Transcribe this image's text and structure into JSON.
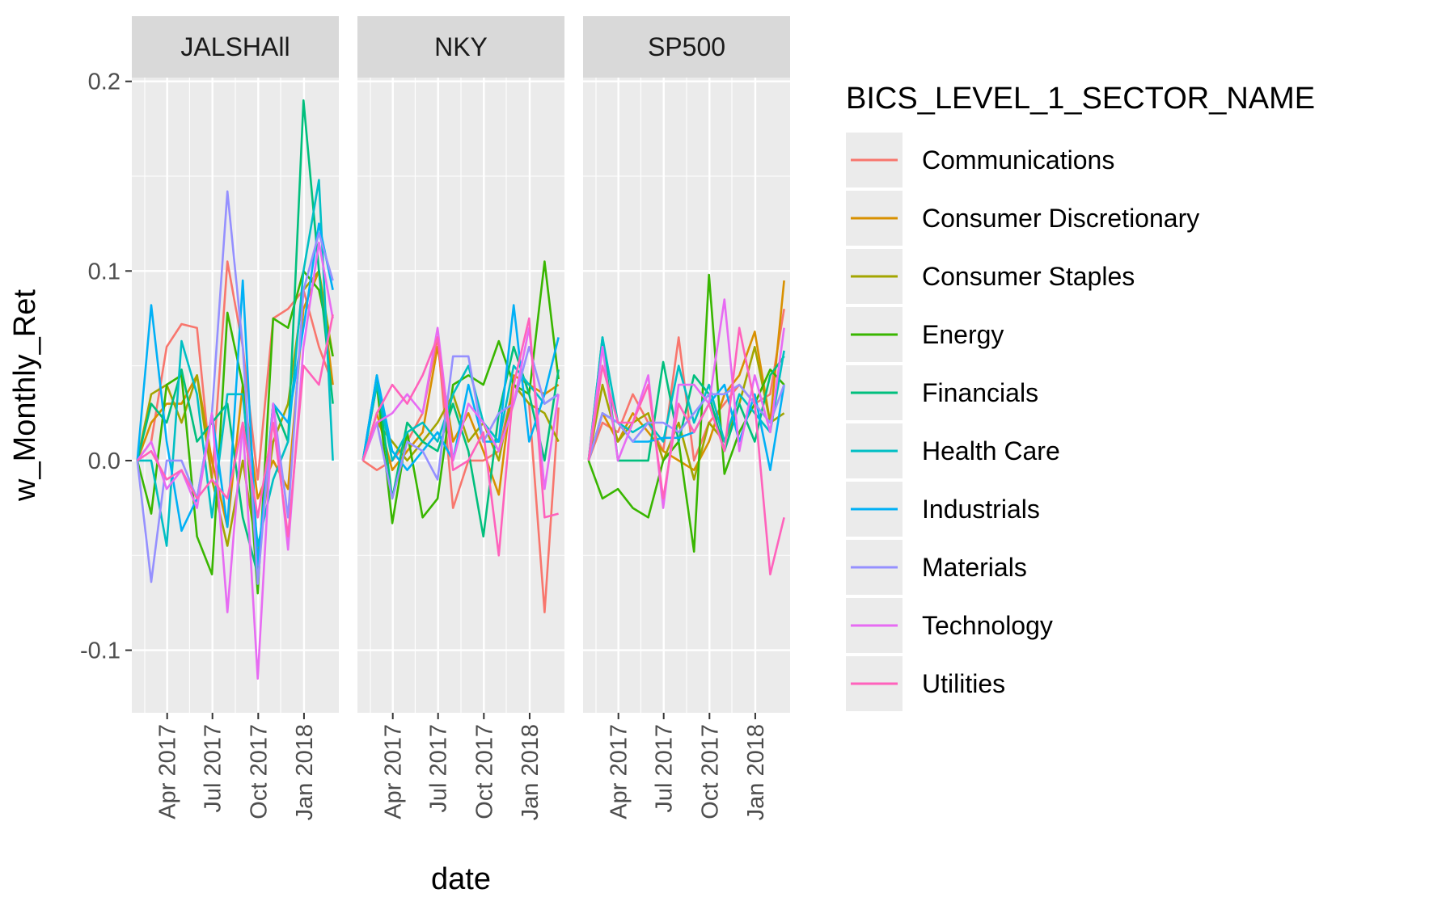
{
  "chart_data": {
    "type": "line",
    "facet_labels": [
      "JALSHAll",
      "NKY",
      "SP500"
    ],
    "xlabel": "date",
    "ylabel": "w_Monthly_Ret",
    "x_tick_labels": [
      "Apr 2017",
      "Jul 2017",
      "Oct 2017",
      "Jan 2018"
    ],
    "x_ticks": [
      "2017-04-01",
      "2017-07-01",
      "2017-10-01",
      "2018-01-01"
    ],
    "x_dates": [
      "2017-01-31",
      "2017-02-28",
      "2017-03-31",
      "2017-04-30",
      "2017-05-31",
      "2017-06-30",
      "2017-07-31",
      "2017-08-31",
      "2017-09-30",
      "2017-10-31",
      "2017-11-30",
      "2017-12-31",
      "2018-01-31",
      "2018-02-28"
    ],
    "xlim": [
      "2017-01-20",
      "2018-03-12"
    ],
    "y_tick_labels": [
      "-0.1",
      "0.0",
      "0.1",
      "0.2"
    ],
    "y_ticks": [
      -0.1,
      0.0,
      0.1,
      0.2
    ],
    "ylim": [
      -0.133,
      0.202
    ],
    "grid": true,
    "legend": {
      "title": "BICS_LEVEL_1_SECTOR_NAME",
      "position": "right",
      "entries": [
        "Communications",
        "Consumer Discretionary",
        "Consumer Staples",
        "Energy",
        "Financials",
        "Health Care",
        "Industrials",
        "Materials",
        "Technology",
        "Utilities"
      ]
    },
    "colors": {
      "Communications": "#F8766D",
      "Consumer Discretionary": "#D89000",
      "Consumer Staples": "#A3A500",
      "Energy": "#39B600",
      "Financials": "#00BF7D",
      "Health Care": "#00BFC4",
      "Industrials": "#00B0F6",
      "Materials": "#9590FF",
      "Technology": "#E76BF3",
      "Utilities": "#FF62BC"
    },
    "panels": [
      {
        "facet": "JALSHAll",
        "series": [
          {
            "name": "Communications",
            "values": [
              0,
              0.01,
              0.06,
              0.072,
              0.07,
              -0.01,
              0.105,
              0.06,
              -0.01,
              0.075,
              0.08,
              0.09,
              0.06,
              0.04
            ]
          },
          {
            "name": "Consumer Discretionary",
            "values": [
              0,
              0.02,
              0.03,
              0.03,
              0.045,
              0.0,
              -0.035,
              0.04,
              -0.02,
              0.0,
              -0.015,
              0.08,
              0.1,
              0.04
            ]
          },
          {
            "name": "Consumer Staples",
            "values": [
              0,
              0.035,
              0.04,
              0.02,
              0.045,
              -0.01,
              -0.045,
              0.0,
              -0.05,
              0.01,
              0.03,
              0.09,
              0.1,
              0.055
            ]
          },
          {
            "name": "Energy",
            "values": [
              0,
              -0.028,
              0.04,
              0.045,
              -0.04,
              -0.06,
              0.078,
              0.04,
              -0.07,
              0.075,
              0.07,
              0.1,
              0.09,
              0.055
            ]
          },
          {
            "name": "Financials",
            "values": [
              0,
              0.03,
              0.02,
              0.048,
              0.01,
              0.02,
              0.03,
              -0.03,
              -0.06,
              0.03,
              0.01,
              0.19,
              0.1,
              0.03
            ]
          },
          {
            "name": "Health Care",
            "values": [
              0,
              0.0,
              -0.045,
              0.063,
              0.035,
              -0.03,
              0.035,
              0.035,
              -0.045,
              -0.01,
              0.01,
              0.1,
              0.148,
              0.0
            ]
          },
          {
            "name": "Industrials",
            "values": [
              0,
              0.082,
              0.01,
              -0.037,
              -0.02,
              0.025,
              -0.035,
              0.095,
              -0.055,
              0.03,
              0.02,
              0.07,
              0.125,
              0.09
            ]
          },
          {
            "name": "Materials",
            "values": [
              0,
              -0.064,
              0.0,
              0.0,
              -0.02,
              0.025,
              0.142,
              0.06,
              -0.065,
              0.03,
              -0.03,
              0.09,
              0.12,
              0.095
            ]
          },
          {
            "name": "Technology",
            "values": [
              0,
              0.01,
              -0.015,
              -0.005,
              -0.025,
              0.025,
              -0.08,
              0.02,
              -0.115,
              0.03,
              -0.047,
              0.06,
              0.115,
              0.075
            ]
          },
          {
            "name": "Utilities",
            "values": [
              0,
              0.005,
              -0.01,
              -0.005,
              -0.02,
              -0.01,
              -0.02,
              0.02,
              -0.03,
              0.02,
              -0.04,
              0.05,
              0.04,
              0.077
            ]
          }
        ]
      },
      {
        "facet": "NKY",
        "series": [
          {
            "name": "Communications",
            "values": [
              0,
              -0.005,
              0.0,
              0.01,
              0.025,
              0.065,
              -0.025,
              0.0,
              0.0,
              0.005,
              0.04,
              0.03,
              -0.08,
              0.028
            ]
          },
          {
            "name": "Consumer Discretionary",
            "values": [
              0,
              0.025,
              -0.005,
              0.005,
              0.015,
              0.06,
              0.01,
              0.025,
              0.005,
              -0.018,
              0.045,
              0.04,
              0.035,
              0.04
            ]
          },
          {
            "name": "Consumer Staples",
            "values": [
              0,
              0.02,
              0.01,
              0.0,
              0.01,
              0.02,
              0.035,
              0.01,
              0.02,
              0.0,
              0.04,
              0.03,
              0.025,
              0.01
            ]
          },
          {
            "name": "Energy",
            "values": [
              0,
              0.04,
              -0.033,
              0.015,
              -0.03,
              -0.02,
              0.04,
              0.045,
              0.04,
              0.063,
              0.04,
              0.035,
              0.105,
              0.043
            ]
          },
          {
            "name": "Financials",
            "values": [
              0,
              0.045,
              -0.02,
              0.02,
              0.01,
              0.005,
              0.03,
              0.005,
              -0.04,
              0.025,
              0.06,
              0.035,
              0.0,
              0.048
            ]
          },
          {
            "name": "Health Care",
            "values": [
              0,
              0.04,
              0.0,
              0.015,
              0.02,
              0.01,
              0.035,
              0.05,
              0.02,
              0.01,
              0.05,
              0.04,
              0.03,
              0.035
            ]
          },
          {
            "name": "Industrials",
            "values": [
              0,
              0.045,
              0.005,
              -0.005,
              0.005,
              0.015,
              0.0,
              0.04,
              0.01,
              0.01,
              0.082,
              0.01,
              0.035,
              0.065
            ]
          },
          {
            "name": "Materials",
            "values": [
              0,
              0.02,
              -0.02,
              0.01,
              0.005,
              -0.01,
              0.055,
              0.055,
              0.01,
              0.025,
              0.03,
              0.06,
              0.03,
              0.035
            ]
          },
          {
            "name": "Technology",
            "values": [
              0,
              0.02,
              0.025,
              0.035,
              0.025,
              0.07,
              0.0,
              0.03,
              0.02,
              0.005,
              0.03,
              0.07,
              -0.015,
              0.035
            ]
          },
          {
            "name": "Utilities",
            "values": [
              0,
              0.025,
              0.04,
              0.03,
              0.045,
              0.065,
              -0.005,
              0.0,
              0.015,
              -0.05,
              0.04,
              0.075,
              -0.03,
              -0.028
            ]
          }
        ]
      },
      {
        "facet": "SP500",
        "series": [
          {
            "name": "Communications",
            "values": [
              0,
              0.02,
              0.015,
              0.035,
              0.02,
              0.005,
              0.065,
              0.0,
              0.02,
              0.03,
              0.04,
              0.03,
              0.035,
              0.08
            ]
          },
          {
            "name": "Consumer Discretionary",
            "values": [
              0,
              0.025,
              0.01,
              0.025,
              0.015,
              0.005,
              0.0,
              -0.005,
              0.01,
              0.035,
              0.045,
              0.068,
              0.02,
              0.095
            ]
          },
          {
            "name": "Consumer Staples",
            "values": [
              0,
              0.04,
              0.01,
              0.02,
              0.025,
              0.0,
              0.02,
              -0.01,
              0.02,
              0.01,
              0.03,
              0.06,
              0.02,
              0.025
            ]
          },
          {
            "name": "Energy",
            "values": [
              0,
              -0.02,
              -0.015,
              -0.025,
              -0.03,
              0.0,
              0.01,
              -0.048,
              0.098,
              -0.007,
              0.015,
              0.03,
              0.048,
              0.04
            ]
          },
          {
            "name": "Financials",
            "values": [
              0,
              0.065,
              0.0,
              0.0,
              0.0,
              0.052,
              0.01,
              0.045,
              0.035,
              0.005,
              0.03,
              0.01,
              0.045,
              0.055
            ]
          },
          {
            "name": "Health Care",
            "values": [
              0,
              0.065,
              0.02,
              0.015,
              0.02,
              0.01,
              0.05,
              0.02,
              0.04,
              0.01,
              0.035,
              0.025,
              0.015,
              0.058
            ]
          },
          {
            "name": "Industrials",
            "values": [
              0,
              0.025,
              0.02,
              0.01,
              0.01,
              0.012,
              0.012,
              0.015,
              0.03,
              0.04,
              0.01,
              0.035,
              -0.005,
              0.04
            ]
          },
          {
            "name": "Materials",
            "values": [
              0,
              0.025,
              0.02,
              0.01,
              0.02,
              0.02,
              0.015,
              0.025,
              0.035,
              0.035,
              0.04,
              0.03,
              0.02,
              0.04
            ]
          },
          {
            "name": "Technology",
            "values": [
              0,
              0.06,
              0.0,
              0.02,
              0.045,
              -0.025,
              0.04,
              0.04,
              0.03,
              0.085,
              0.005,
              0.045,
              0.015,
              0.07
            ]
          },
          {
            "name": "Utilities",
            "values": [
              0,
              0.05,
              0.02,
              0.02,
              0.04,
              -0.02,
              0.03,
              0.015,
              0.03,
              0.005,
              0.07,
              0.03,
              -0.06,
              -0.03
            ]
          }
        ]
      }
    ]
  }
}
